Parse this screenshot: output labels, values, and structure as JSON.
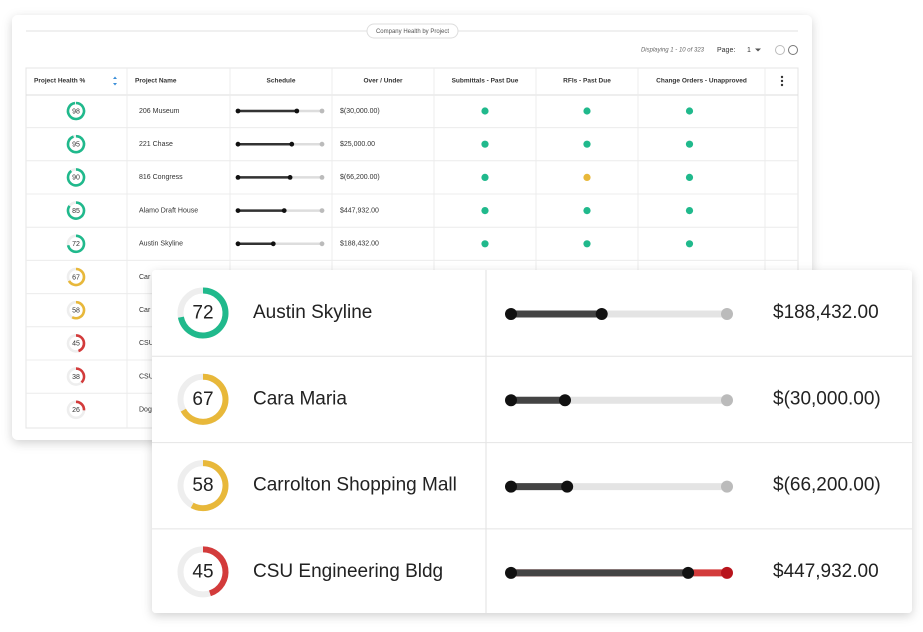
{
  "header": {
    "title": "Company Health by Project",
    "displaying": "Displaying 1 - 10 of 323",
    "page_label": "Page:",
    "page": "1"
  },
  "table": {
    "columns": [
      "Project Health %",
      "Project Name",
      "Schedule",
      "Over / Under",
      "Submittals - Past Due",
      "RFIs - Past Due",
      "Change Orders - Unapproved"
    ],
    "rows": [
      {
        "health": 98,
        "color": "#20b98c",
        "name": "206 Museum",
        "schedule": 0.7,
        "over_under": "$(30,000.00)",
        "submittals": "#20b98c",
        "rfis": "#20b98c",
        "change_orders": "#20b98c"
      },
      {
        "health": 95,
        "color": "#20b98c",
        "name": "221 Chase",
        "schedule": 0.64,
        "over_under": "$25,000.00",
        "submittals": "#20b98c",
        "rfis": "#20b98c",
        "change_orders": "#20b98c"
      },
      {
        "health": 90,
        "color": "#20b98c",
        "name": "816 Congress",
        "schedule": 0.62,
        "over_under": "$(66,200.00)",
        "submittals": "#20b98c",
        "rfis": "#e8b83a",
        "change_orders": "#20b98c"
      },
      {
        "health": 85,
        "color": "#20b98c",
        "name": "Alamo Draft House",
        "schedule": 0.55,
        "over_under": "$447,932.00",
        "submittals": "#20b98c",
        "rfis": "#20b98c",
        "change_orders": "#20b98c"
      },
      {
        "health": 72,
        "color": "#20b98c",
        "name": "Austin Skyline",
        "schedule": 0.42,
        "over_under": "$188,432.00",
        "submittals": "#20b98c",
        "rfis": "#20b98c",
        "change_orders": "#20b98c"
      },
      {
        "health": 67,
        "color": "#e8b83a",
        "name": "Car"
      },
      {
        "health": 58,
        "color": "#e8b83a",
        "name": "Car"
      },
      {
        "health": 45,
        "color": "#d33b3b",
        "name": "CSU"
      },
      {
        "health": 38,
        "color": "#d33b3b",
        "name": "CSU"
      },
      {
        "health": 26,
        "color": "#d33b3b",
        "name": "Dog"
      }
    ]
  },
  "detail": {
    "rows": [
      {
        "health": 72,
        "color": "#20b98c",
        "name": "Austin Skyline",
        "schedule": 0.42,
        "overdue": false,
        "over_under": "$188,432.00"
      },
      {
        "health": 67,
        "color": "#e8b83a",
        "name": "Cara Maria",
        "schedule": 0.25,
        "overdue": false,
        "over_under": "$(30,000.00)"
      },
      {
        "health": 58,
        "color": "#e8b83a",
        "name": "Carrolton Shopping Mall",
        "schedule": 0.26,
        "overdue": false,
        "over_under": "$(66,200.00)"
      },
      {
        "health": 45,
        "color": "#d33b3b",
        "name": "CSU Engineering Bldg",
        "schedule": 0.82,
        "overdue": true,
        "over_under": "$447,932.00"
      }
    ]
  }
}
